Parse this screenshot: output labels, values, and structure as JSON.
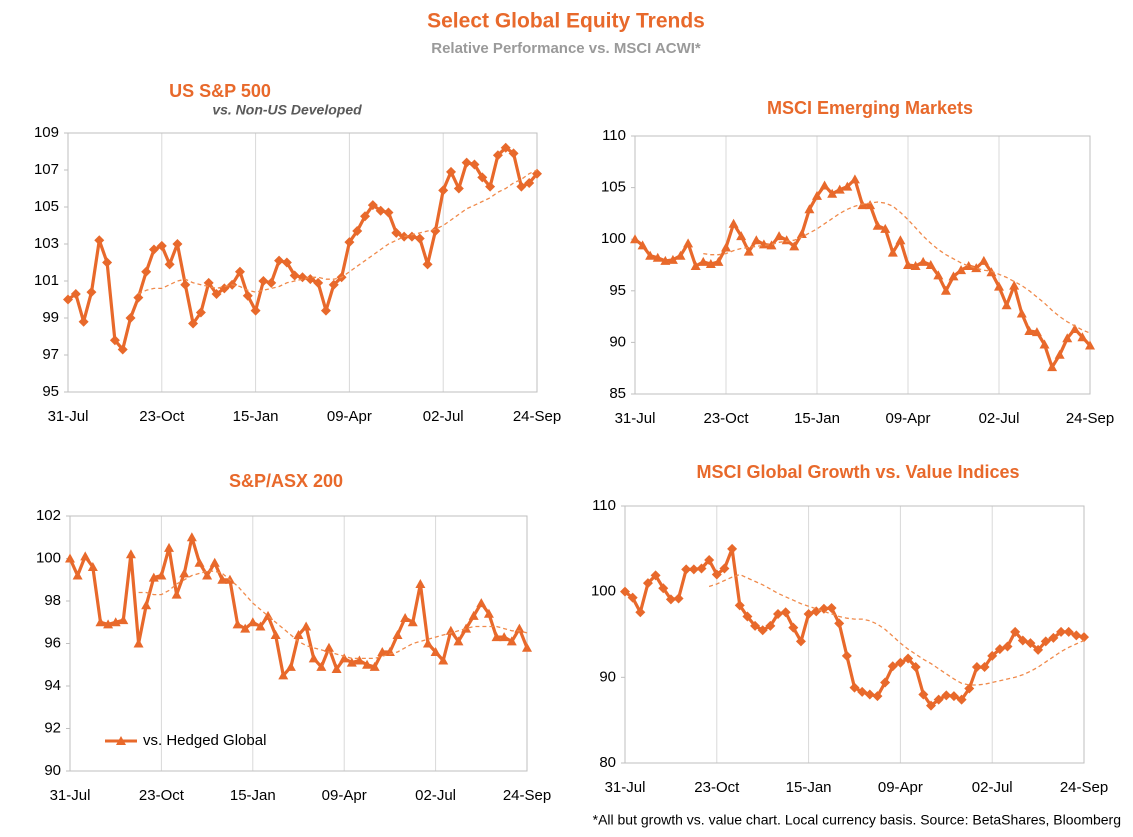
{
  "title": "Select Global Equity Trends",
  "subtitle": "Relative Performance vs. MSCI ACWI*",
  "footnote": "*All but growth vs. value chart. Local currency basis.  Source: BetaShares, Bloomberg",
  "chart_data": [
    {
      "type": "line",
      "title": "US S&P 500",
      "subtitle": "vs. Non-US Developed",
      "marker": "diamond",
      "grid": true,
      "categories": [
        "31-Jul",
        null,
        null,
        null,
        null,
        null,
        null,
        null,
        null,
        null,
        null,
        null,
        "23-Oct",
        null,
        null,
        null,
        null,
        null,
        null,
        null,
        null,
        null,
        null,
        null,
        "15-Jan",
        null,
        null,
        null,
        null,
        null,
        null,
        null,
        null,
        null,
        null,
        null,
        "09-Apr",
        null,
        null,
        null,
        null,
        null,
        null,
        null,
        null,
        null,
        null,
        null,
        "02-Jul",
        null,
        null,
        null,
        null,
        null,
        null,
        null,
        null,
        null,
        null,
        null,
        "24-Sep"
      ],
      "ylim": [
        95,
        109
      ],
      "yticks": [
        95,
        97,
        99,
        101,
        103,
        105,
        107,
        109
      ],
      "series": [
        {
          "color": "#e8692b",
          "values": [
            100,
            100.3,
            98.8,
            100.4,
            103.2,
            102,
            97.8,
            97.3,
            99,
            100.1,
            101.5,
            102.7,
            102.9,
            101.9,
            103,
            100.8,
            98.7,
            99.3,
            100.9,
            100.3,
            100.6,
            100.8,
            101.5,
            100.2,
            99.4,
            101,
            100.9,
            102.1,
            102,
            101.3,
            101.2,
            101.1,
            100.9,
            99.4,
            100.8,
            101.2,
            103.1,
            103.7,
            104.5,
            105.1,
            104.8,
            104.7,
            103.6,
            103.4,
            103.4,
            103.3,
            101.9,
            103.7,
            105.9,
            106.9,
            106,
            107.4,
            107.3,
            106.6,
            106.1,
            107.8,
            108.2,
            107.9,
            106.1,
            106.3,
            106.8
          ]
        },
        {
          "color": "#f08a4b",
          "dashed": true,
          "values": [
            null,
            null,
            null,
            null,
            null,
            null,
            null,
            null,
            null,
            100.3,
            100.5,
            100.6,
            100.6,
            100.8,
            101,
            101.1,
            100.9,
            100.8,
            100.7,
            100.6,
            100.7,
            100.8,
            100.7,
            100.5,
            100.4,
            100.5,
            100.6,
            100.7,
            100.9,
            101,
            101.1,
            101.2,
            101.2,
            101.1,
            101.1,
            101.2,
            101.5,
            101.8,
            102.1,
            102.4,
            102.7,
            103,
            103.2,
            103.4,
            103.5,
            103.6,
            103.7,
            103.8,
            104,
            104.3,
            104.6,
            104.9,
            105.1,
            105.3,
            105.5,
            105.8,
            106,
            106.3,
            106.5,
            106.8,
            107
          ]
        }
      ]
    },
    {
      "type": "line",
      "title": "MSCI Emerging Markets",
      "marker": "triangle",
      "grid": true,
      "categories": [
        "31-Jul",
        null,
        null,
        null,
        null,
        null,
        null,
        null,
        null,
        null,
        null,
        null,
        "23-Oct",
        null,
        null,
        null,
        null,
        null,
        null,
        null,
        null,
        null,
        null,
        null,
        "15-Jan",
        null,
        null,
        null,
        null,
        null,
        null,
        null,
        null,
        null,
        null,
        null,
        "09-Apr",
        null,
        null,
        null,
        null,
        null,
        null,
        null,
        null,
        null,
        null,
        null,
        "02-Jul",
        null,
        null,
        null,
        null,
        null,
        null,
        null,
        null,
        null,
        null,
        null,
        "24-Sep"
      ],
      "ylim": [
        85,
        110
      ],
      "yticks": [
        85,
        90,
        95,
        100,
        105,
        110
      ],
      "series": [
        {
          "color": "#e8692b",
          "values": [
            100,
            99.4,
            98.4,
            98.2,
            97.9,
            98,
            98.4,
            99.6,
            97.4,
            97.8,
            97.6,
            97.8,
            99.2,
            101.5,
            100.3,
            98.8,
            99.9,
            99.5,
            99.4,
            100.3,
            99.9,
            99.3,
            100.5,
            102.9,
            104.2,
            105.2,
            104.4,
            104.8,
            105.1,
            105.8,
            103.3,
            103.3,
            101.3,
            101,
            98.7,
            99.9,
            97.5,
            97.4,
            97.8,
            97.5,
            96.5,
            95,
            96.4,
            97,
            97.4,
            97.2,
            97.9,
            96.8,
            95.4,
            93.6,
            95.5,
            92.8,
            91.1,
            91,
            89.8,
            87.6,
            88.8,
            90.4,
            91.3,
            90.5,
            89.7
          ]
        },
        {
          "color": "#f08a4b",
          "dashed": true,
          "values": [
            null,
            null,
            null,
            null,
            null,
            null,
            null,
            null,
            null,
            98.6,
            98.5,
            98.5,
            98.6,
            98.9,
            99.1,
            99.2,
            99.3,
            99.4,
            99.5,
            99.7,
            99.8,
            99.9,
            100.2,
            100.6,
            101,
            101.5,
            102,
            102.5,
            102.9,
            103.2,
            103.4,
            103.5,
            103.6,
            103.5,
            103.2,
            102.6,
            101.9,
            101.1,
            100.3,
            99.6,
            99,
            98.5,
            98.1,
            97.7,
            97.4,
            97.2,
            97,
            96.9,
            96.6,
            96.3,
            95.9,
            95.5,
            95,
            94.4,
            93.8,
            93.1,
            92.5,
            92,
            91.6,
            91.2,
            90.9
          ]
        }
      ]
    },
    {
      "type": "line",
      "title": "S&P/ASX 200",
      "marker": "triangle",
      "grid": true,
      "legend": "lower left",
      "categories": [
        "31-Jul",
        null,
        null,
        null,
        null,
        null,
        null,
        null,
        null,
        null,
        null,
        null,
        "23-Oct",
        null,
        null,
        null,
        null,
        null,
        null,
        null,
        null,
        null,
        null,
        null,
        "15-Jan",
        null,
        null,
        null,
        null,
        null,
        null,
        null,
        null,
        null,
        null,
        null,
        "09-Apr",
        null,
        null,
        null,
        null,
        null,
        null,
        null,
        null,
        null,
        null,
        null,
        "02-Jul",
        null,
        null,
        null,
        null,
        null,
        null,
        null,
        null,
        null,
        null,
        null,
        "24-Sep"
      ],
      "ylim": [
        90,
        102
      ],
      "yticks": [
        90,
        92,
        94,
        96,
        98,
        100,
        102
      ],
      "series": [
        {
          "name": "vs. Hedged Global",
          "color": "#e8692b",
          "values": [
            100,
            99.2,
            100.1,
            99.6,
            97,
            96.9,
            97,
            97.1,
            100.2,
            96,
            97.8,
            99.1,
            99.2,
            100.5,
            98.3,
            99.3,
            101,
            99.8,
            99.2,
            99.8,
            99,
            99,
            96.9,
            96.7,
            97,
            96.8,
            97.3,
            96.4,
            94.5,
            94.9,
            96.4,
            96.8,
            95.3,
            94.9,
            95.8,
            94.8,
            95.3,
            95.1,
            95.2,
            95,
            94.9,
            95.6,
            95.6,
            96.4,
            97.2,
            97,
            98.8,
            96,
            95.6,
            95.2,
            96.6,
            96.1,
            96.7,
            97.3,
            97.9,
            97.4,
            96.3,
            96.3,
            96.1,
            96.7,
            95.8
          ]
        },
        {
          "color": "#f08a4b",
          "dashed": true,
          "values": [
            null,
            null,
            null,
            null,
            null,
            null,
            null,
            null,
            null,
            98.4,
            98.4,
            98.3,
            98.3,
            98.5,
            98.8,
            99,
            99.2,
            99.3,
            99.4,
            99.4,
            99.3,
            99,
            98.7,
            98.3,
            97.9,
            97.6,
            97.3,
            97,
            96.7,
            96.4,
            96.1,
            95.9,
            95.8,
            95.7,
            95.6,
            95.5,
            95.4,
            95.3,
            95.3,
            95.3,
            95.3,
            95.4,
            95.5,
            95.6,
            95.8,
            96,
            96.1,
            96.2,
            96.3,
            96.4,
            96.5,
            96.6,
            96.7,
            96.8,
            96.8,
            96.8,
            96.8,
            96.7,
            96.6,
            96.6,
            96.5
          ]
        }
      ]
    },
    {
      "type": "line",
      "title": "MSCI Global Growth vs. Value Indices",
      "marker": "diamond",
      "grid": true,
      "categories": [
        "31-Jul",
        null,
        null,
        null,
        null,
        null,
        null,
        null,
        null,
        null,
        null,
        null,
        "23-Oct",
        null,
        null,
        null,
        null,
        null,
        null,
        null,
        null,
        null,
        null,
        null,
        "15-Jan",
        null,
        null,
        null,
        null,
        null,
        null,
        null,
        null,
        null,
        null,
        null,
        "09-Apr",
        null,
        null,
        null,
        null,
        null,
        null,
        null,
        null,
        null,
        null,
        null,
        "02-Jul",
        null,
        null,
        null,
        null,
        null,
        null,
        null,
        null,
        null,
        null,
        null,
        "24-Sep"
      ],
      "ylim": [
        80,
        110
      ],
      "yticks": [
        80,
        90,
        100,
        110
      ],
      "series": [
        {
          "color": "#e8692b",
          "values": [
            100,
            99.3,
            97.6,
            101,
            101.9,
            100.4,
            99.1,
            99.2,
            102.6,
            102.6,
            102.7,
            103.7,
            102,
            102.7,
            105,
            98.4,
            97.1,
            96,
            95.5,
            96,
            97.4,
            97.6,
            95.8,
            94.2,
            97.4,
            97.7,
            98,
            98.1,
            96.3,
            92.5,
            88.8,
            88.3,
            88,
            87.8,
            89.4,
            91.3,
            91.7,
            92.2,
            91.2,
            88,
            86.7,
            87.4,
            87.9,
            87.8,
            87.4,
            88.7,
            91.2,
            91.2,
            92.5,
            93.3,
            93.6,
            95.3,
            94.3,
            94,
            93.2,
            94.2,
            94.6,
            95.3,
            95.3,
            94.9,
            94.7
          ]
        },
        {
          "color": "#f08a4b",
          "dashed": true,
          "values": [
            null,
            null,
            null,
            null,
            null,
            null,
            null,
            null,
            null,
            null,
            null,
            100.6,
            100.9,
            101.3,
            101.7,
            102,
            101.6,
            101.2,
            100.8,
            100.3,
            99.8,
            99.4,
            99,
            98.6,
            98.3,
            98,
            97.7,
            97.4,
            97.1,
            96.9,
            96.8,
            96.8,
            96.6,
            96.2,
            95.6,
            94.8,
            94,
            93.3,
            92.7,
            92.1,
            91.6,
            91,
            90.4,
            89.8,
            89.3,
            89.1,
            89.1,
            89.2,
            89.4,
            89.6,
            89.8,
            90,
            90.3,
            90.7,
            91.2,
            91.8,
            92.4,
            93,
            93.5,
            93.9,
            94.3
          ]
        }
      ]
    }
  ]
}
